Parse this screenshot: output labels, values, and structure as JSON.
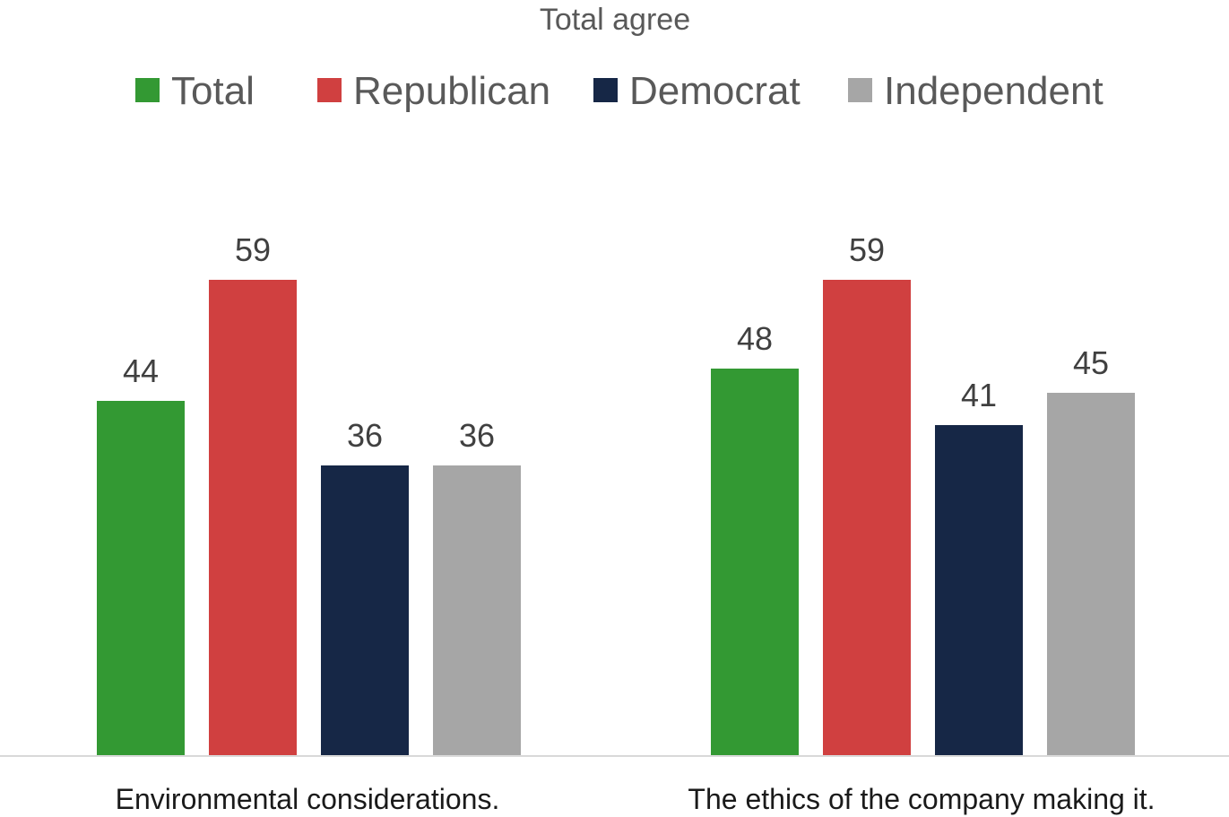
{
  "chart_data": {
    "type": "bar",
    "title": "Total agree",
    "categories": [
      "Environmental considerations.",
      "The ethics of the company making it."
    ],
    "series": [
      {
        "name": "Total",
        "color": "#339933",
        "values": [
          44,
          48
        ]
      },
      {
        "name": "Republican",
        "color": "#D04040",
        "values": [
          59,
          59
        ]
      },
      {
        "name": "Democrat",
        "color": "#162746",
        "values": [
          36,
          41
        ]
      },
      {
        "name": "Independent",
        "color": "#A6A6A6",
        "values": [
          36,
          45
        ]
      }
    ],
    "xlabel": "",
    "ylabel": "",
    "ylim": [
      0,
      73
    ],
    "grid": false,
    "legend": "top",
    "data_labels": true
  }
}
